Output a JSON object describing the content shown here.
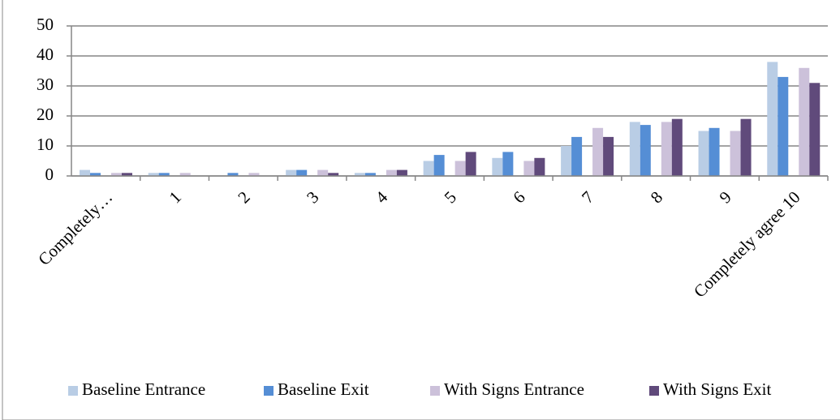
{
  "chart_data": {
    "type": "bar",
    "categories": [
      "Completely…",
      "1",
      "2",
      "3",
      "4",
      "5",
      "6",
      "7",
      "8",
      "9",
      "Completely agree 10"
    ],
    "series": [
      {
        "name": "Baseline Entrance",
        "color": "#b9cde5",
        "values": [
          2,
          1,
          0,
          2,
          1,
          5,
          6,
          10,
          18,
          15,
          38
        ]
      },
      {
        "name": "Baseline Exit",
        "color": "#558ed5",
        "values": [
          1,
          1,
          1,
          2,
          1,
          7,
          8,
          13,
          17,
          16,
          33
        ]
      },
      {
        "name": "With Signs Entrance",
        "color": "#ccc1da",
        "values": [
          1,
          1,
          1,
          2,
          2,
          5,
          5,
          16,
          18,
          15,
          36
        ]
      },
      {
        "name": "With Signs Exit",
        "color": "#604a7b",
        "values": [
          1,
          0,
          0,
          1,
          2,
          8,
          6,
          13,
          19,
          19,
          31
        ]
      }
    ],
    "ylim": [
      0,
      50
    ],
    "yticks": [
      0,
      10,
      20,
      30,
      40,
      50
    ],
    "grid": true,
    "legend": "bottom"
  }
}
